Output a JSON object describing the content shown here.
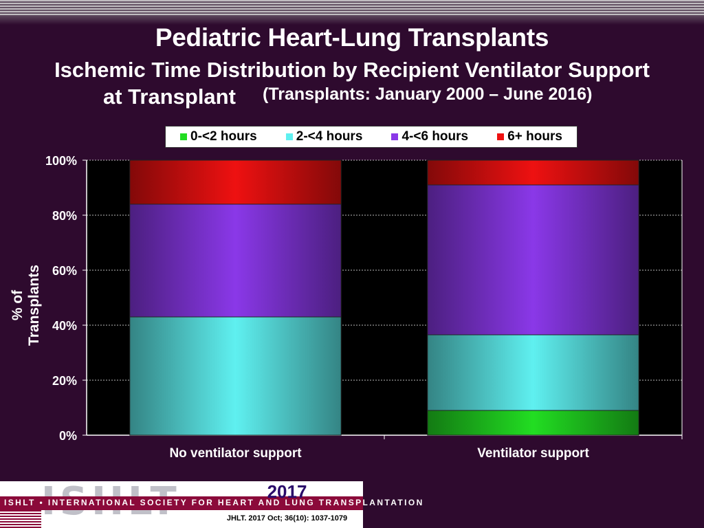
{
  "title": "Pediatric Heart-Lung Transplants",
  "subtitle_line1": "Ischemic Time Distribution by Recipient Ventilator Support",
  "subtitle_line2": "at Transplant",
  "subtitle_note": "(Transplants: January 2000 – June 2016)",
  "footer": {
    "logo": "ISHLT",
    "tagline": "ISHLT • INTERNATIONAL SOCIETY FOR HEART AND LUNG TRANSPLANTATION",
    "year": "2017",
    "citation": "JHLT. 2017 Oct; 36(10): 1037-1079"
  },
  "colors": {
    "background": "#2e0a2e",
    "plot_background": "#000000"
  },
  "chart_data": {
    "type": "bar",
    "stacked": true,
    "percent": true,
    "categories": [
      "No ventilator support",
      "Ventilator support"
    ],
    "ylabel": "% of Transplants",
    "ylim": [
      0,
      100
    ],
    "yticks": [
      "0%",
      "20%",
      "40%",
      "60%",
      "80%",
      "100%"
    ],
    "grid": true,
    "legend_position": "top",
    "series": [
      {
        "name": "0-<2 hours",
        "color": "#22dd22",
        "values": [
          0,
          9
        ]
      },
      {
        "name": "2-<4 hours",
        "color": "#5ff0f0",
        "values": [
          43,
          27.5
        ]
      },
      {
        "name": "4-<6 hours",
        "color": "#8a38e8",
        "values": [
          41,
          54.5
        ]
      },
      {
        "name": "6+ hours",
        "color": "#ee1111",
        "values": [
          16,
          9
        ]
      }
    ]
  }
}
